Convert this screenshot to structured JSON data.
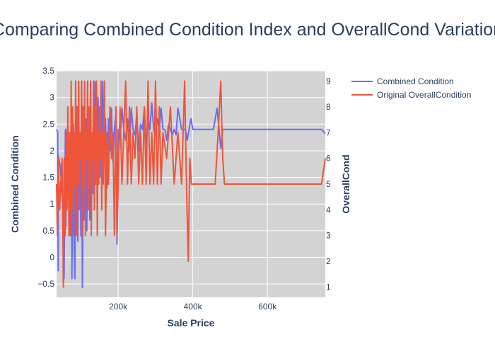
{
  "chart_data": {
    "type": "line",
    "title": "Comparing Combined Condition Index and OverallCond Variation",
    "xlabel": "Sale Price",
    "ylabel": "Combined Condition",
    "y2label": "OverallCond",
    "xlim": [
      34900,
      755000
    ],
    "ylim": [
      -0.75,
      3.5
    ],
    "y2lim": [
      0.6,
      9.4
    ],
    "x_ticks": [
      200000,
      400000,
      600000
    ],
    "x_tick_labels": [
      "200k",
      "400k",
      "600k"
    ],
    "y_ticks": [
      -0.5,
      0,
      0.5,
      1,
      1.5,
      2,
      2.5,
      3,
      3.5
    ],
    "y_tick_labels": [
      "−0.5",
      "0",
      "0.5",
      "1",
      "1.5",
      "2",
      "2.5",
      "3",
      "3.5"
    ],
    "y2_ticks": [
      1,
      2,
      3,
      4,
      5,
      6,
      7,
      8,
      9
    ],
    "y2_tick_labels": [
      "1",
      "2",
      "3",
      "4",
      "5",
      "6",
      "7",
      "8",
      "9"
    ],
    "grid": true,
    "plot_background": "#d3d3d3",
    "legend_position": "top-right",
    "series": [
      {
        "name": "Combined Condition",
        "axis": "left",
        "color": "#636efa",
        "x": [
          34900,
          37900,
          39300,
          40000,
          45000,
          52000,
          55000,
          58500,
          60000,
          62000,
          64000,
          66500,
          68000,
          72000,
          75000,
          76000,
          78000,
          80000,
          82000,
          84000,
          86000,
          88000,
          90000,
          92000,
          94000,
          96000,
          98000,
          100000,
          102000,
          104000,
          106000,
          108000,
          110000,
          112000,
          114000,
          116000,
          118000,
          120000,
          122000,
          124000,
          126000,
          128000,
          130000,
          132000,
          134000,
          136000,
          138000,
          140000,
          142000,
          144000,
          146000,
          148000,
          150000,
          152000,
          154000,
          156000,
          158000,
          160000,
          163000,
          166000,
          170000,
          174000,
          178000,
          182000,
          186000,
          190000,
          194000,
          197000,
          200000,
          205000,
          210000,
          215000,
          220000,
          225000,
          230000,
          235000,
          240000,
          245000,
          250000,
          255000,
          260000,
          265000,
          270000,
          275000,
          280000,
          285000,
          290000,
          295000,
          300000,
          305000,
          310000,
          315000,
          320000,
          325000,
          330000,
          335000,
          340000,
          345000,
          350000,
          355000,
          360000,
          370000,
          380000,
          385000,
          390000,
          395000,
          400000,
          420000,
          440000,
          455000,
          465000,
          475000,
          480000,
          485000,
          500000,
          600000,
          700000,
          745000,
          755000
        ],
        "y": [
          2.4,
          2.35,
          -0.25,
          1.9,
          1.7,
          0.9,
          -0.4,
          2.4,
          0.6,
          2.2,
          2.45,
          1.3,
          2.2,
          0.4,
          2.4,
          -0.4,
          1.5,
          2.5,
          0.2,
          -0.4,
          2.8,
          1.0,
          2.2,
          0.3,
          3.3,
          0.9,
          2.1,
          0.4,
          3.2,
          -0.57,
          1.4,
          0.7,
          3.0,
          0.8,
          2.6,
          0.5,
          3.3,
          1.1,
          2.7,
          0.7,
          3.3,
          1.6,
          2.0,
          1.2,
          2.8,
          1.6,
          3.3,
          1.9,
          2.3,
          1.7,
          3.0,
          2.1,
          2.6,
          1.5,
          2.7,
          2.0,
          3.3,
          2.3,
          1.9,
          2.6,
          1.3,
          2.6,
          2.0,
          2.8,
          1.8,
          2.4,
          2.7,
          0.25,
          2.4,
          2.2,
          2.8,
          2.4,
          2.2,
          2.6,
          2.0,
          2.8,
          2.4,
          2.3,
          2.7,
          2.0,
          2.5,
          2.4,
          2.8,
          2.1,
          2.6,
          2.4,
          2.9,
          2.4,
          2.3,
          2.6,
          2.4,
          2.8,
          2.4,
          2.4,
          2.2,
          2.5,
          2.4,
          2.3,
          2.4,
          2.3,
          2.8,
          2.4,
          2.4,
          2.2,
          2.4,
          2.6,
          2.4,
          2.4,
          2.4,
          2.4,
          2.8,
          2.05,
          2.4,
          2.4,
          2.4,
          2.4,
          2.4,
          2.4,
          2.32
        ]
      },
      {
        "name": "Original OverallCondition",
        "axis": "right",
        "color": "#ef553b",
        "x": [
          34900,
          37000,
          40000,
          43000,
          46000,
          50000,
          53000,
          55500,
          58000,
          61000,
          63000,
          65000,
          68000,
          70000,
          72000,
          74000,
          76000,
          78000,
          80000,
          82000,
          84000,
          86000,
          88000,
          90000,
          92000,
          94000,
          96000,
          98000,
          100000,
          102000,
          104000,
          106000,
          108000,
          110000,
          112000,
          114000,
          116000,
          118000,
          120000,
          122000,
          124000,
          126000,
          128000,
          130000,
          132000,
          134000,
          136000,
          138000,
          140000,
          142000,
          144000,
          146000,
          148000,
          150000,
          152000,
          154000,
          156000,
          158000,
          160000,
          163000,
          166000,
          170000,
          174000,
          178000,
          182000,
          186000,
          190000,
          194000,
          197000,
          200000,
          205000,
          210000,
          215000,
          220000,
          225000,
          230000,
          235000,
          240000,
          245000,
          250000,
          255000,
          260000,
          265000,
          270000,
          275000,
          280000,
          285000,
          290000,
          295000,
          300000,
          305000,
          310000,
          315000,
          320000,
          330000,
          340000,
          350000,
          360000,
          370000,
          378000,
          383000,
          388000,
          392000,
          396000,
          400000,
          430000,
          460000,
          468000,
          475000,
          480000,
          485000,
          500000,
          600000,
          700000,
          745000,
          755000
        ],
        "y": [
          5,
          3,
          6,
          4,
          5,
          6,
          1,
          6,
          3,
          7,
          4,
          8,
          3,
          7,
          3,
          9,
          4,
          8,
          3,
          7,
          5,
          9,
          3,
          8,
          5,
          9,
          4,
          7,
          6,
          9,
          3,
          8,
          5,
          9,
          3,
          7,
          6,
          9,
          4,
          8,
          5,
          9,
          3,
          7,
          6,
          9,
          4,
          8,
          5,
          9,
          3,
          7,
          5,
          8,
          6,
          9,
          4,
          7,
          5,
          9,
          3,
          7,
          5,
          8,
          6,
          7,
          3,
          8,
          3,
          5,
          8,
          5,
          7,
          9,
          5,
          8,
          5,
          7,
          6,
          8,
          5,
          7,
          5,
          8,
          5,
          9,
          5,
          7,
          5,
          9,
          5,
          8,
          5,
          7,
          6,
          8,
          5,
          7,
          5,
          9,
          5,
          2,
          6,
          5,
          5,
          5,
          5,
          7,
          9,
          6,
          5,
          5,
          5,
          5,
          5,
          6
        ]
      }
    ]
  }
}
